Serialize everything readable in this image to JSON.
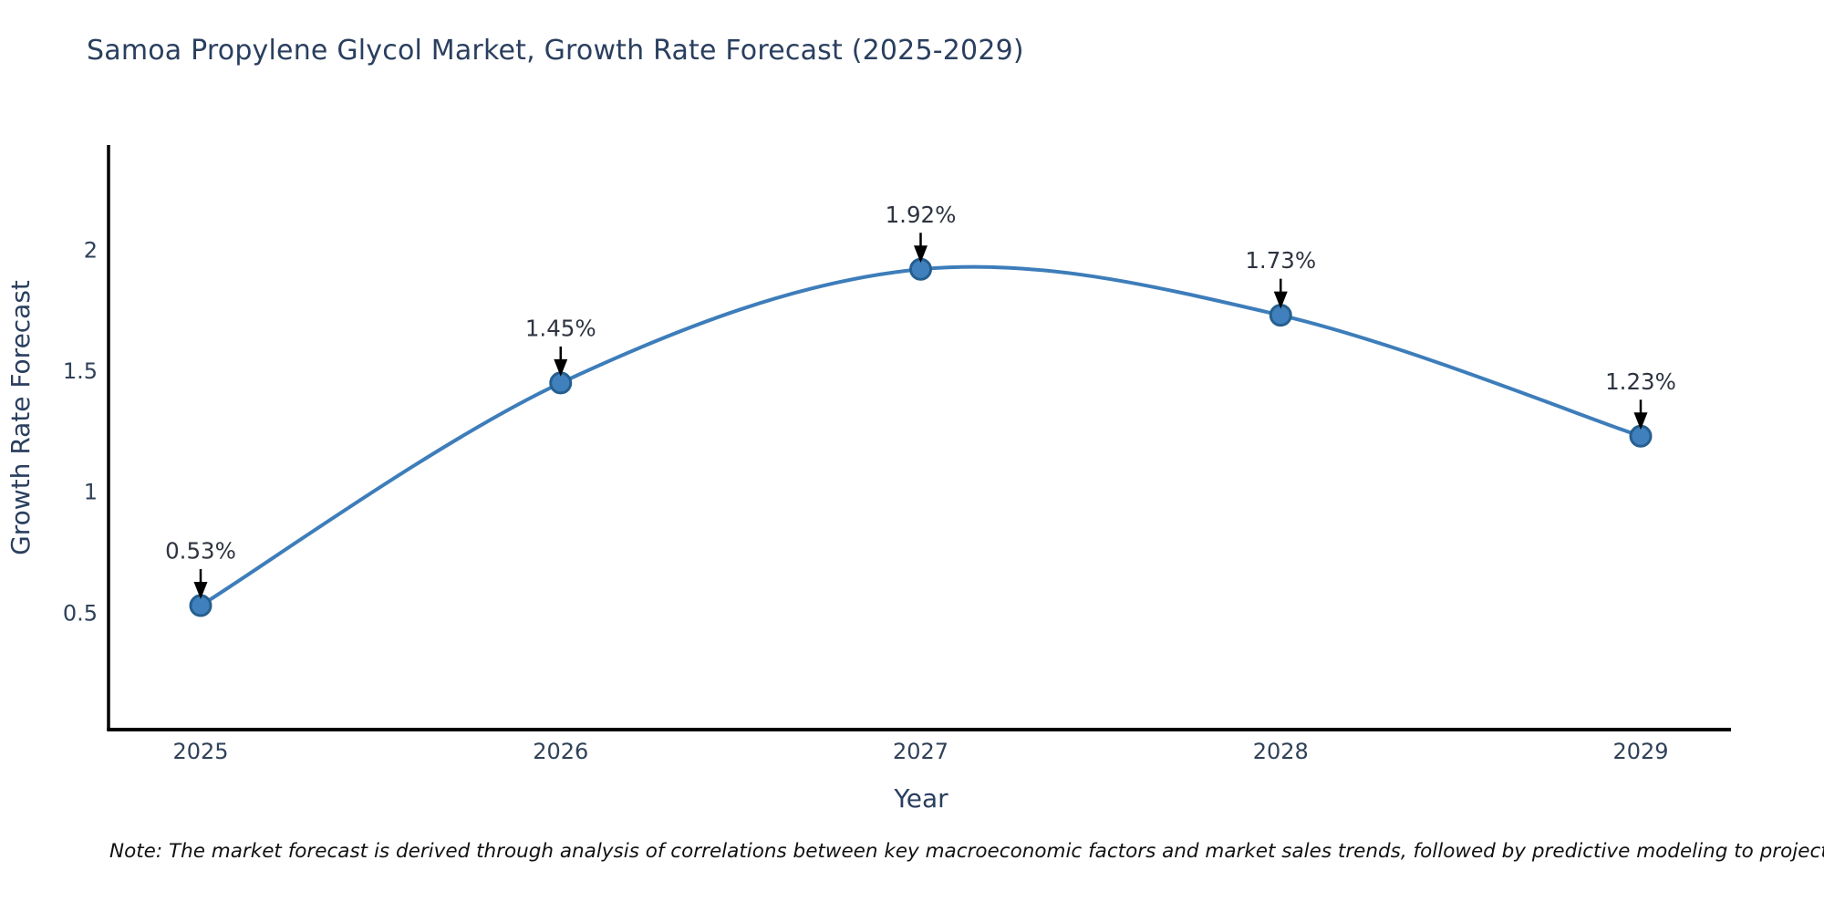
{
  "title": "Samoa Propylene Glycol Market, Growth Rate Forecast (2025-2029)",
  "note": "Note: The market forecast is derived through analysis of correlations between key macroeconomic factors and market sales trends, followed by predictive modeling to project future sales",
  "chart_data": {
    "type": "line",
    "title": "Samoa Propylene Glycol Market, Growth Rate Forecast (2025-2029)",
    "xlabel": "Year",
    "ylabel": "Growth Rate Forecast",
    "categories": [
      "2025",
      "2026",
      "2027",
      "2028",
      "2029"
    ],
    "series": [
      {
        "name": "Growth Rate Forecast",
        "values": [
          0.53,
          1.45,
          1.92,
          1.73,
          1.23
        ],
        "point_labels": [
          "0.53%",
          "1.45%",
          "1.92%",
          "1.73%",
          "1.23%"
        ]
      }
    ],
    "y_ticks": [
      0.5,
      1,
      1.5,
      2
    ],
    "ylim": [
      0.02,
      2.43
    ],
    "xlim": [
      "2024.74",
      "2029.25"
    ],
    "grid": false,
    "legend_position": "none",
    "line_style": "spline",
    "annotation_style": "down-arrow-to-point",
    "colors": {
      "line": "#3d7dba",
      "marker_fill": "#4081bd",
      "marker_edge": "#265f8f",
      "arrow": "#000000",
      "axis_line": "#000000",
      "title_text": "#2a3f5f",
      "axis_label_text": "#2a3f5f",
      "tick_text": "#2f4158",
      "point_label_text": "#2e3440",
      "note_text": "#111111",
      "background": "#ffffff"
    }
  }
}
